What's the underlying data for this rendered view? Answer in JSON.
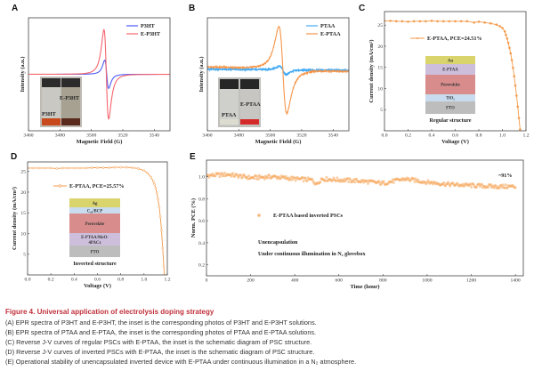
{
  "panels": {
    "A": {
      "letter": "A",
      "legend": [
        "P3HT",
        "E-P3HT"
      ],
      "photo_labels": [
        "P3HT",
        "E-P3HT"
      ]
    },
    "B": {
      "letter": "B",
      "legend": [
        "PTAA",
        "E-PTAA"
      ],
      "photo_labels": [
        "PTAA",
        "E-PTAA"
      ]
    },
    "C": {
      "letter": "C",
      "legend": "E-PTAA, PCE=24.51%",
      "layers": [
        "Au",
        "E-PTAA",
        "Perovskite",
        "TiO₂",
        "FTO"
      ],
      "structure": "Regular structure"
    },
    "D": {
      "letter": "D",
      "legend": "E-PTAA, PCE=25.57%",
      "layers": [
        "Ag",
        "C₆₀/BCP",
        "Perovskite",
        "E-PTAA/MeO-",
        "4PACz",
        "FTO"
      ],
      "structure": "Inverted structure"
    },
    "E": {
      "letter": "E",
      "legend": "E-PTAA based inverted PSCs",
      "note1": "Unencapsulation",
      "note2": "Under continuous illumination in N₂ glovebox",
      "annotation": "~91%"
    }
  },
  "caption": {
    "title": "Figure 4.  Universal application of electrolysis doping strategy",
    "lines": [
      "(A) EPR spectra of P3HT and E-P3HT, the inset is the corresponding photos of P3HT and E-P3HT solutions.",
      "(B) EPR spectra of PTAA and E-PTAA, the inset is the corresponding photos of PTAA and E-PTAA solutions.",
      "(C) Reverse J-V curves of regular PSCs with E-PTAA, the inset is the schematic diagram of PSC structure.",
      "(D) Reverse J-V curves of inverted PSCs with E-PTAA, the inset is the schematic diagram of PSC structure.",
      "(E) Operational stability of unencapsulated inverted device with E-PTAA under continuous illumination in a N₂ atmosphere."
    ]
  },
  "chart_data": [
    {
      "id": "A",
      "type": "line",
      "xlabel": "Magnetic Field (G)",
      "ylabel": "Intensity (a.u.)",
      "xlim": [
        3460,
        3550
      ],
      "ylim": [
        -1,
        1
      ],
      "xticks": [
        3460,
        3480,
        3500,
        3520,
        3540
      ],
      "xtick_labels": [
        "3460",
        "3480",
        "3500",
        "3520",
        "3540"
      ],
      "yticks": [],
      "ytick_labels": [],
      "series": [
        {
          "name": "P3HT",
          "color": "#4d5bf5",
          "center": 3509.75,
          "peak_x": 3508.5,
          "trough_x": 3511,
          "peak": 0.25,
          "trough": -0.25,
          "baseline": [
            0,
            0
          ],
          "noise": 0
        },
        {
          "name": "E-P3HT",
          "color": "#f5646e",
          "center": 3509.5,
          "peak_x": 3508,
          "trough_x": 3511,
          "peak": 0.79,
          "trough": -0.79,
          "baseline": [
            0,
            0
          ],
          "noise": 0
        }
      ]
    },
    {
      "id": "B",
      "type": "line",
      "xlabel": "Magnetic Field (G)",
      "ylabel": "Intensity (a.u.)",
      "xlim": [
        3460,
        3550
      ],
      "ylim": [
        -1,
        1
      ],
      "xticks": [
        3460,
        3480,
        3500,
        3520,
        3540
      ],
      "xtick_labels": [
        "3460",
        "3480",
        "3500",
        "3520",
        "3540"
      ],
      "yticks": [],
      "ytick_labels": [],
      "series": [
        {
          "name": "PTAA",
          "color": "#3fa9f5",
          "center": 3508,
          "peak_x": 3506,
          "trough_x": 3510,
          "peak": 0.14,
          "trough": 0.0,
          "baseline": [
            0.09,
            0.07
          ],
          "noise": 0.015
        },
        {
          "name": "E-PTAA",
          "color": "#f7964a",
          "center": 3508,
          "peak_x": 3505.5,
          "trough_x": 3510.5,
          "peak": 0.84,
          "trough": -0.69,
          "baseline": [
            0.13,
            0.05
          ],
          "noise": 0.012
        }
      ]
    },
    {
      "id": "C",
      "type": "line",
      "xlabel": "Voltage (V)",
      "ylabel": "Current density (mA/cm²)",
      "xlim": [
        0,
        1.2
      ],
      "ylim": [
        0,
        28.2
      ],
      "xticks": [
        0,
        0.2,
        0.4,
        0.6,
        0.8,
        1.0,
        1.2
      ],
      "xtick_labels": [
        "0.0",
        "0.2",
        "0.4",
        "0.6",
        "0.8",
        "1.0",
        "1.2"
      ],
      "yticks": [
        5,
        10,
        15,
        20,
        25
      ],
      "ytick_labels": [
        "5",
        "10",
        "15",
        "20",
        "25"
      ],
      "series": [
        {
          "name": "E-PTAA, PCE=24.51%",
          "color": "#f39a4a",
          "points": [
            [
              0,
              26
            ],
            [
              0.05,
              26
            ],
            [
              0.1,
              25.9
            ],
            [
              0.15,
              25.9
            ],
            [
              0.2,
              25.8
            ],
            [
              0.25,
              25.9
            ],
            [
              0.3,
              25.9
            ],
            [
              0.35,
              25.9
            ],
            [
              0.4,
              26
            ],
            [
              0.45,
              25.9
            ],
            [
              0.5,
              25.9
            ],
            [
              0.55,
              25.9
            ],
            [
              0.6,
              25.9
            ],
            [
              0.65,
              25.9
            ],
            [
              0.7,
              25.9
            ],
            [
              0.76,
              25.6
            ],
            [
              0.8,
              25.8
            ],
            [
              0.85,
              25.6
            ],
            [
              0.9,
              25.4
            ],
            [
              0.95,
              25.1
            ],
            [
              0.98,
              24.7
            ],
            [
              1.0,
              24.3
            ],
            [
              1.02,
              23.5
            ],
            [
              1.03,
              22.7
            ],
            [
              1.04,
              21.8
            ],
            [
              1.05,
              20.8
            ],
            [
              1.06,
              19.6
            ],
            [
              1.07,
              18.3
            ],
            [
              1.08,
              16.7
            ],
            [
              1.09,
              14.9
            ],
            [
              1.1,
              12.9
            ],
            [
              1.11,
              10.7
            ],
            [
              1.12,
              8.3
            ],
            [
              1.13,
              5.7
            ],
            [
              1.14,
              3.0
            ],
            [
              1.15,
              0.3
            ]
          ]
        }
      ]
    },
    {
      "id": "D",
      "type": "line",
      "xlabel": "Voltage (V)",
      "ylabel": "Current density (mA/cm²)",
      "xlim": [
        0,
        1.2
      ],
      "ylim": [
        0,
        27.3
      ],
      "xticks": [
        0,
        0.2,
        0.4,
        0.6,
        0.8,
        1.0,
        1.2
      ],
      "xtick_labels": [
        "0.0",
        "0.2",
        "0.4",
        "0.6",
        "0.8",
        "1.0",
        "1.2"
      ],
      "yticks": [
        5,
        10,
        15,
        20,
        25
      ],
      "ytick_labels": [
        "5",
        "10",
        "15",
        "20",
        "25"
      ],
      "series": [
        {
          "name": "E-PTAA, PCE=25.57%",
          "color": "#f39a4a",
          "points": [
            [
              0,
              25.8
            ],
            [
              0.05,
              25.8
            ],
            [
              0.1,
              25.8
            ],
            [
              0.15,
              25.8
            ],
            [
              0.2,
              25.8
            ],
            [
              0.25,
              25.7
            ],
            [
              0.3,
              25.8
            ],
            [
              0.35,
              25.8
            ],
            [
              0.4,
              25.8
            ],
            [
              0.45,
              25.8
            ],
            [
              0.5,
              25.8
            ],
            [
              0.55,
              25.9
            ],
            [
              0.6,
              25.9
            ],
            [
              0.65,
              25.9
            ],
            [
              0.7,
              25.9
            ],
            [
              0.75,
              26
            ],
            [
              0.8,
              26
            ],
            [
              0.85,
              26
            ],
            [
              0.9,
              25.9
            ],
            [
              0.95,
              25.7
            ],
            [
              1.0,
              25.2
            ],
            [
              1.03,
              24.6
            ],
            [
              1.06,
              23.6
            ],
            [
              1.08,
              22.6
            ],
            [
              1.09,
              21.9
            ],
            [
              1.1,
              21.0
            ],
            [
              1.11,
              19.8
            ],
            [
              1.12,
              18.3
            ],
            [
              1.13,
              16.5
            ],
            [
              1.14,
              14.0
            ],
            [
              1.15,
              10.8
            ],
            [
              1.16,
              6.5
            ],
            [
              1.17,
              2.0
            ],
            [
              1.175,
              0
            ]
          ]
        }
      ]
    },
    {
      "id": "E",
      "type": "scatter",
      "xlabel": "Time (hour)",
      "ylabel": "Norm. PCE (%)",
      "xlim": [
        0,
        1436
      ],
      "ylim": [
        0.1,
        1.15
      ],
      "xticks": [
        0,
        200,
        400,
        600,
        800,
        1000,
        1200,
        1400
      ],
      "xtick_labels": [
        "0",
        "200",
        "400",
        "600",
        "800",
        "1000",
        "1200",
        "1400"
      ],
      "yticks": [
        0.2,
        0.4,
        0.6,
        0.8,
        1.0
      ],
      "ytick_labels": [
        "0.2",
        "0.4",
        "0.6",
        "0.8",
        "1.0"
      ],
      "series": [
        {
          "name": "E-PTAA based inverted PSCs",
          "color": "#f5a55a",
          "sampling_hours": 4,
          "scatter_amplitude": 0.018,
          "trend": [
            [
              0,
              1.01
            ],
            [
              100,
              1.02
            ],
            [
              200,
              0.99
            ],
            [
              300,
              1.0
            ],
            [
              400,
              0.98
            ],
            [
              480,
              0.97
            ],
            [
              500,
              0.93
            ],
            [
              520,
              0.98
            ],
            [
              700,
              0.96
            ],
            [
              800,
              0.94
            ],
            [
              900,
              0.98
            ],
            [
              1000,
              0.95
            ],
            [
              1100,
              0.93
            ],
            [
              1200,
              0.92
            ],
            [
              1300,
              0.91
            ],
            [
              1400,
              0.91
            ]
          ]
        }
      ]
    }
  ]
}
